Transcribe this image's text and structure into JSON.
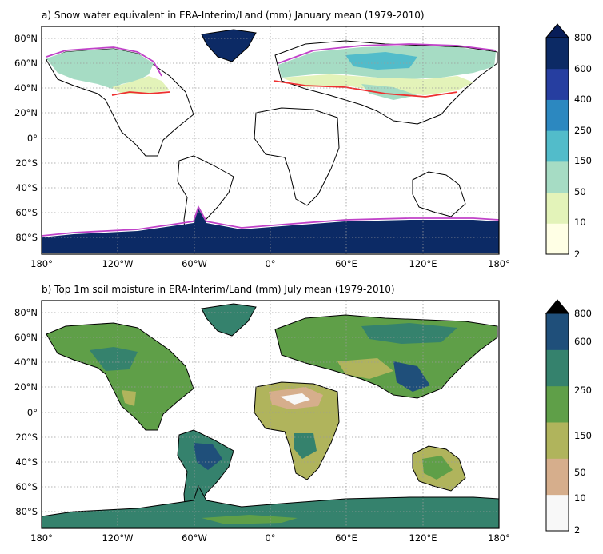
{
  "panels": [
    {
      "title": "a) Snow water equivalent in ERA-Interim/Land (mm) January mean (1979-2010)",
      "colorbar": {
        "ticks": [
          "2",
          "10",
          "50",
          "150",
          "250",
          "400",
          "600",
          "800"
        ],
        "colors": [
          "#ffffe5",
          "#e3f3b9",
          "#a6dcc4",
          "#52bcca",
          "#2c88c0",
          "#263ea0",
          "#0c2a65"
        ],
        "extend_color": "#081d58"
      }
    },
    {
      "title": "b) Top 1m soil moisture in ERA-Interim/Land (mm) July mean (1979-2010)",
      "colorbar": {
        "ticks": [
          "2",
          "10",
          "50",
          "150",
          "250",
          "600",
          "800"
        ],
        "colors": [
          "#f8f8f8",
          "#d6ae8c",
          "#b0b45c",
          "#5f9f48",
          "#35826d",
          "#1f4f7a"
        ],
        "extend_color": "#000000"
      }
    }
  ],
  "axes": {
    "lat_labels": [
      "80°N",
      "60°N",
      "40°N",
      "20°N",
      "0°",
      "20°S",
      "40°S",
      "60°S",
      "80°S"
    ],
    "lon_labels": [
      "180°",
      "120°W",
      "60°W",
      "0°",
      "60°E",
      "120°E",
      "180°"
    ]
  },
  "contour_colors": {
    "snow_cover_extent": "#c042c8",
    "snow_line": "#ee3030"
  }
}
